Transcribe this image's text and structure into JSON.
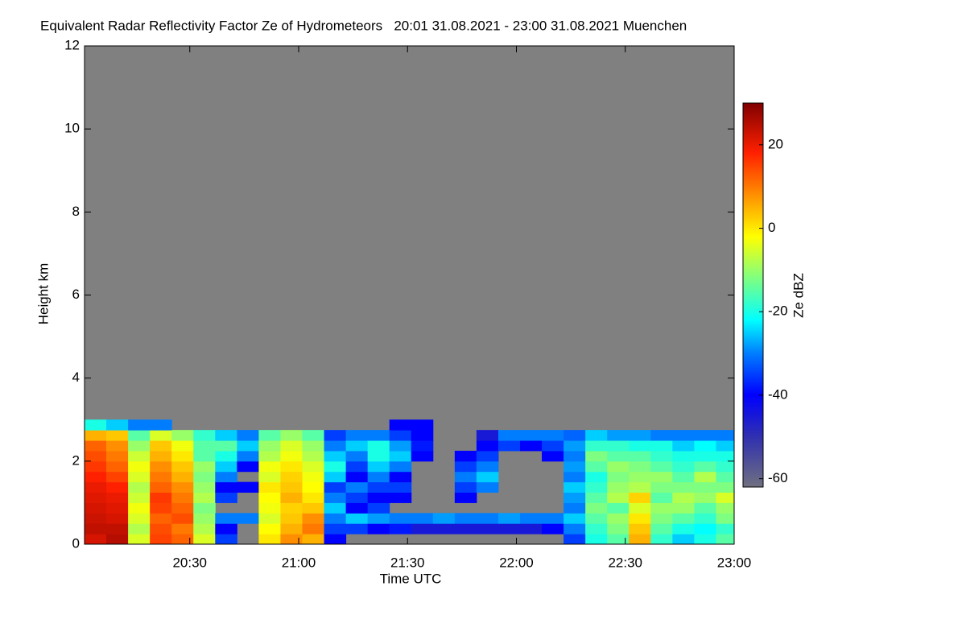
{
  "chart_data": {
    "type": "heatmap",
    "title": "Equivalent Radar Reflectivity Factor Ze of Hydrometeors   20:01 31.08.2021 - 23:00 31.08.2021 Muenchen",
    "xlabel": "Time UTC",
    "ylabel": "Height km",
    "colorbar_label": "Ze dBZ",
    "background": "#808080",
    "xlim": [
      "20:01",
      "23:00"
    ],
    "xticks": [
      "20:30",
      "21:00",
      "21:30",
      "22:00",
      "22:30",
      "23:00"
    ],
    "ylim": [
      0,
      12
    ],
    "yticks": [
      0,
      2,
      4,
      6,
      8,
      10,
      12
    ],
    "zlim": [
      -62,
      30
    ],
    "zticks": [
      -60,
      -40,
      -20,
      0,
      20
    ],
    "x_edges": [
      "20:01",
      "20:07",
      "20:13",
      "20:19",
      "20:25",
      "20:31",
      "20:37",
      "20:43",
      "20:49",
      "20:55",
      "21:01",
      "21:07",
      "21:13",
      "21:19",
      "21:25",
      "21:31",
      "21:37",
      "21:43",
      "21:49",
      "21:55",
      "22:01",
      "22:07",
      "22:13",
      "22:19",
      "22:25",
      "22:31",
      "22:37",
      "22:43",
      "22:49",
      "22:55",
      "23:01"
    ],
    "height_edges": [
      0,
      0.25,
      0.5,
      0.75,
      1,
      1.25,
      1.5,
      1.75,
      2,
      2.25,
      2.5,
      2.75,
      3
    ],
    "values": [
      [
        22,
        24,
        23,
        22,
        21,
        20,
        18,
        16,
        14,
        12,
        5,
        -20
      ],
      [
        25,
        24,
        22,
        21,
        20,
        18,
        15,
        12,
        10,
        8,
        3,
        -25
      ],
      [
        -5,
        -8,
        -5,
        -3,
        -6,
        -8,
        -5,
        -3,
        -6,
        -10,
        -15,
        -30
      ],
      [
        15,
        14,
        12,
        15,
        16,
        12,
        10,
        8,
        5,
        3,
        -5,
        -30
      ],
      [
        12,
        10,
        14,
        12,
        10,
        8,
        5,
        3,
        0,
        -3,
        -10,
        null
      ],
      [
        -5,
        -8,
        -10,
        -12,
        -8,
        -10,
        -12,
        -10,
        -15,
        -15,
        -18,
        null
      ],
      [
        -35,
        -40,
        -30,
        null,
        -35,
        -40,
        -30,
        -25,
        -20,
        -15,
        -25,
        null
      ],
      [
        null,
        null,
        -30,
        null,
        null,
        -40,
        null,
        -40,
        -30,
        -25,
        -30,
        null
      ],
      [
        0,
        -2,
        -5,
        -3,
        -2,
        0,
        -5,
        -3,
        -8,
        -10,
        -15,
        null
      ],
      [
        8,
        5,
        3,
        2,
        5,
        3,
        2,
        0,
        -3,
        -5,
        -10,
        null
      ],
      [
        5,
        10,
        8,
        3,
        0,
        -2,
        -3,
        -5,
        -8,
        -10,
        -15,
        null
      ],
      [
        -40,
        -35,
        -30,
        -25,
        -30,
        -35,
        -25,
        -20,
        -25,
        -30,
        -35,
        null
      ],
      [
        null,
        -35,
        -25,
        -40,
        -35,
        -30,
        -40,
        -35,
        -30,
        -25,
        -30,
        null
      ],
      [
        null,
        -40,
        -28,
        -35,
        -40,
        -35,
        -30,
        -25,
        -20,
        -20,
        -30,
        null
      ],
      [
        null,
        -38,
        -30,
        null,
        -40,
        -35,
        -40,
        -30,
        -25,
        -28,
        -35,
        -40
      ],
      [
        null,
        -45,
        -30,
        null,
        null,
        null,
        null,
        null,
        -40,
        -38,
        -40,
        -40
      ],
      [
        null,
        -45,
        -28,
        null,
        null,
        null,
        null,
        null,
        null,
        null,
        null,
        null
      ],
      [
        null,
        -45,
        -30,
        null,
        -40,
        -35,
        -30,
        -35,
        -40,
        null,
        null,
        null
      ],
      [
        null,
        -45,
        -30,
        null,
        null,
        -30,
        -25,
        -30,
        -35,
        -40,
        -45,
        null
      ],
      [
        null,
        -45,
        -28,
        null,
        null,
        null,
        null,
        null,
        null,
        -35,
        -30,
        null
      ],
      [
        null,
        -45,
        -30,
        null,
        null,
        null,
        null,
        null,
        null,
        -40,
        -30,
        null
      ],
      [
        null,
        -40,
        -30,
        null,
        null,
        null,
        null,
        null,
        -40,
        -35,
        -30,
        null
      ],
      [
        -35,
        -30,
        -25,
        -30,
        -28,
        -25,
        -30,
        -28,
        -30,
        -28,
        -32,
        null
      ],
      [
        -20,
        -18,
        -15,
        -12,
        -15,
        -18,
        -20,
        -15,
        -12,
        -18,
        -25,
        null
      ],
      [
        -15,
        -12,
        -10,
        -15,
        -8,
        -10,
        -12,
        -10,
        -15,
        -18,
        -28,
        null
      ],
      [
        5,
        3,
        0,
        -5,
        2,
        -8,
        -10,
        -12,
        -15,
        -20,
        -28,
        null
      ],
      [
        -18,
        -15,
        -12,
        -10,
        -15,
        -12,
        -10,
        -15,
        -18,
        -20,
        -30,
        null
      ],
      [
        -25,
        -20,
        -15,
        -10,
        -8,
        -12,
        -15,
        -18,
        -20,
        -25,
        -30,
        null
      ],
      [
        -20,
        -22,
        -18,
        -15,
        -10,
        -12,
        -8,
        -15,
        -20,
        -22,
        -30,
        null
      ],
      [
        -15,
        -18,
        -12,
        -10,
        -5,
        -12,
        -15,
        -18,
        -20,
        -25,
        -30,
        null
      ]
    ]
  }
}
